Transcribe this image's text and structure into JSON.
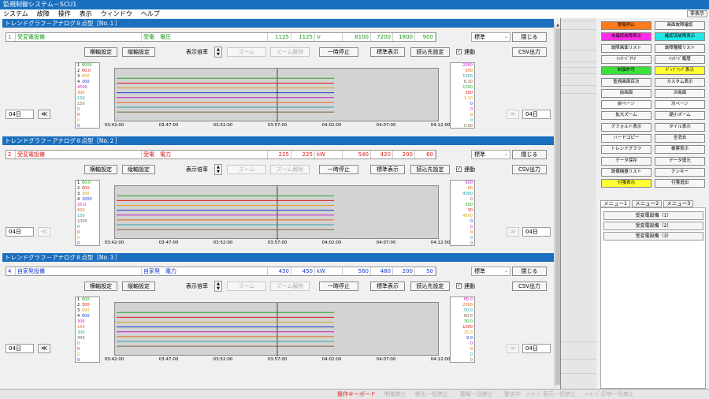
{
  "title": "監視制御システム－SCU1",
  "menu": [
    "システム",
    "故障",
    "操作",
    "表示",
    "ウィンドウ",
    "ヘルプ"
  ],
  "hide_label": "非表示",
  "right_buttons": [
    {
      "label": "警報停止",
      "bg": "#ff7a1a"
    },
    {
      "label": "画面故障確認",
      "bg": "#f6f6f6"
    },
    {
      "label": "未確認故障表示",
      "bg": "#ff2ee6"
    },
    {
      "label": "確認済故障表示",
      "bg": "#22e6e6"
    },
    {
      "label": "故障画面リスト",
      "bg": "#f6f6f6"
    },
    {
      "label": "故障種類リスト",
      "bg": "#f6f6f6"
    },
    {
      "label": "ﾒｯｾｰｼﾞｸﾘｱ",
      "bg": "#f6f6f6"
    },
    {
      "label": "ﾒｯｾｰｼﾞ履歴",
      "bg": "#f6f6f6"
    },
    {
      "label": "制御許可",
      "bg": "#3ce03c"
    },
    {
      "label": "ﾎﾟｯﾌﾟｱｯﾌﾟ表示",
      "bg": "#ffff33"
    },
    {
      "label": "監視画面目次",
      "bg": "#f6f6f6"
    },
    {
      "label": "カスタム表示",
      "bg": "#f6f6f6"
    },
    {
      "label": "前画面",
      "bg": "#f6f6f6"
    },
    {
      "label": "次画面",
      "bg": "#f6f6f6"
    },
    {
      "label": "前ページ",
      "bg": "#fbfbfb"
    },
    {
      "label": "次ページ",
      "bg": "#fbfbfb"
    },
    {
      "label": "拡大ズーム",
      "bg": "#f6f6f6"
    },
    {
      "label": "縮小ズーム",
      "bg": "#f6f6f6"
    },
    {
      "label": "デフォルト表示",
      "bg": "#f6f6f6"
    },
    {
      "label": "タイル表示",
      "bg": "#f6f6f6"
    },
    {
      "label": "ハードコピー",
      "bg": "#f6f6f6"
    },
    {
      "label": "全消去",
      "bg": "#f6f6f6"
    },
    {
      "label": "トレンドグラフ",
      "bg": "#f6f6f6"
    },
    {
      "label": "帳票表示",
      "bg": "#f6f6f6"
    },
    {
      "label": "データ保存",
      "bg": "#f6f6f6"
    },
    {
      "label": "データ復元",
      "bg": "#f6f6f6"
    },
    {
      "label": "設備機器リスト",
      "bg": "#f6f6f6"
    },
    {
      "label": "テンキー",
      "bg": "#f6f6f6"
    },
    {
      "label": "付箋表示",
      "bg": "#ffff33"
    },
    {
      "label": "付箋追加",
      "bg": "#f6f6f6"
    }
  ],
  "menu_tabs": [
    "メニュー1",
    "メニュー2",
    "メニュー3"
  ],
  "menu_items": [
    "受変電設備（1）",
    "受変電設備（2）",
    "受変電設備（3）"
  ],
  "status_items": [
    "操作キーボード",
    "制御禁止",
    "帳出一括禁止",
    "警報一括禁止",
    "警告中",
    "ﾒｯｾｰｼﾞ表示一括禁止",
    "ﾒｯｾｰｼﾞ印字一括禁止"
  ],
  "common": {
    "h_axis_btn": "横軸設定",
    "v_axis_btn": "縦軸設定",
    "scale_label": "表示倍率",
    "zoom_btn": "ズーム",
    "zoom_reset_btn": "ズーム解除",
    "pause_btn": "一時停止",
    "std_btn": "標準表示",
    "load_btn": "読込先設定",
    "link_label": "連動",
    "select_value": "標準",
    "close_btn": "閉じる",
    "csv_btn": "CSV出力",
    "day": "04日",
    "prev": "≪",
    "next": "≫",
    "time_ticks": [
      "03:42:00",
      "03:47:00",
      "03:52:00",
      "03:57:00",
      "04:02:00",
      "04:07:00",
      "04:12:00"
    ]
  },
  "panels": [
    {
      "header": "トレンドグラフ－アナログ８点型［No.１］",
      "info": {
        "num": "1",
        "equip": "受変電設備",
        "point": "受電　電圧",
        "v1": "1125",
        "v2": "1125",
        "unit": "V",
        "a": "8100",
        "b": "7200",
        "c": "1800",
        "d": "900"
      },
      "text_color": "#1a9a1a",
      "left_scale": [
        {
          "n": "1",
          "hi": "8000",
          "mid": "4500",
          "lo": "0"
        },
        {
          "n": "2",
          "hi": "60.0",
          "mid": "300",
          "lo": "0"
        },
        {
          "n": "3",
          "hi": "600",
          "mid": "150",
          "lo": "0"
        },
        {
          "n": "4",
          "hi": "300",
          "mid": "150",
          "lo": "0"
        }
      ],
      "right_scale": [
        {
          "hi": "2000",
          "mid": "1000",
          "lo": "0"
        },
        {
          "hi": "600",
          "mid": "300",
          "lo": "0"
        },
        {
          "hi": "1000",
          "mid": "3.10",
          "lo": "0"
        },
        {
          "hi": "6.20",
          "mid": "0",
          "lo": "0.00"
        }
      ],
      "prev_enabled": true
    },
    {
      "header": "トレンドグラフ－アナログ８点型［No.２］",
      "info": {
        "num": "2",
        "equip": "受変電設備",
        "point": "受電　電力",
        "v1": "225",
        "v2": "225",
        "unit": "kW",
        "a": "540",
        "b": "420",
        "c": "200",
        "d": "60"
      },
      "text_color": "#d81a1a",
      "left_scale": [
        {
          "n": "1",
          "hi": "60.0",
          "mid": "25.0",
          "lo": "0"
        },
        {
          "n": "2",
          "hi": "600",
          "mid": "600",
          "lo": "0"
        },
        {
          "n": "3",
          "hi": "300",
          "mid": "150",
          "lo": "0"
        },
        {
          "n": "4",
          "hi": "2000",
          "mid": "1000",
          "lo": "0"
        }
      ],
      "right_scale": [
        {
          "hi": "600",
          "mid": "300",
          "lo": "0"
        },
        {
          "hi": "60",
          "mid": "30",
          "lo": "0"
        },
        {
          "hi": "9000",
          "mid": "4500",
          "lo": "0"
        },
        {
          "hi": "0",
          "mid": "0",
          "lo": "0"
        }
      ],
      "prev_enabled": false
    },
    {
      "header": "トレンドグラフ－アナログ８点型［No.３］",
      "info": {
        "num": "4",
        "equip": "自家発設備",
        "point": "自家発　電力",
        "v1": "450",
        "v2": "450",
        "unit": "kW",
        "a": "560",
        "b": "480",
        "c": "200",
        "d": "50"
      },
      "text_color": "#1a3acc",
      "left_scale": [
        {
          "n": "1",
          "hi": "600",
          "mid": "300",
          "lo": "0"
        },
        {
          "n": "2",
          "hi": "300",
          "mid": "150",
          "lo": "0"
        },
        {
          "n": "3",
          "hi": "600",
          "mid": "300",
          "lo": "0"
        },
        {
          "n": "4",
          "hi": "600",
          "mid": "300",
          "lo": "0"
        }
      ],
      "right_scale": [
        {
          "hi": "65.0",
          "mid": "30.0",
          "lo": "0"
        },
        {
          "hi": "2000",
          "mid": "1000",
          "lo": "0"
        },
        {
          "hi": "50.0",
          "mid": "25.0",
          "lo": "0"
        },
        {
          "hi": "60.0",
          "mid": "9.0",
          "lo": "0"
        }
      ],
      "prev_enabled": true
    }
  ],
  "series_colors": [
    "#2aa52a",
    "#d81a1a",
    "#d6a020",
    "#1a3acc",
    "#c020c0",
    "#e06a1a",
    "#2aa0a0",
    "#806040"
  ]
}
